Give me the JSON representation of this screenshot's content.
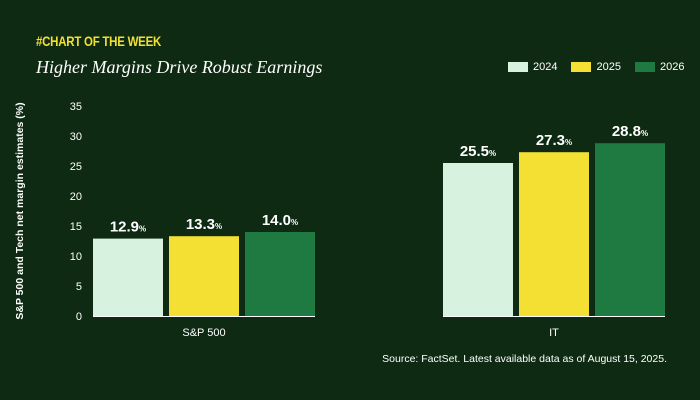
{
  "header": {
    "tag": "#CHART OF THE WEEK",
    "title": "Higher Margins Drive Robust Earnings"
  },
  "footer": {
    "source": "Source: FactSet. Latest available data as of August 15, 2025."
  },
  "colors": {
    "background": "#0f2a12",
    "accent": "#f3e033",
    "s2024": "#d8f2e0",
    "s2025": "#f3e033",
    "s2026": "#1e7a40"
  },
  "chart_data": {
    "type": "bar",
    "categories": [
      "S&P 500",
      "IT"
    ],
    "series": [
      {
        "name": "2024",
        "values": [
          12.9,
          25.5
        ],
        "labels": [
          "12.9",
          "25.5"
        ],
        "color": "#d8f2e0"
      },
      {
        "name": "2025",
        "values": [
          13.3,
          27.3
        ],
        "labels": [
          "13.3",
          "27.3"
        ],
        "color": "#f3e033"
      },
      {
        "name": "2026",
        "values": [
          14.0,
          28.8
        ],
        "labels": [
          "14.0",
          "28.8"
        ],
        "color": "#1e7a40"
      }
    ],
    "label_unit": "%",
    "ylabel": "S&P 500 and Tech net margin estimates (%)",
    "xlabel": "",
    "ylim": [
      0,
      35
    ],
    "yticks": [
      0,
      5,
      10,
      15,
      20,
      25,
      30,
      35
    ],
    "grid": false,
    "legend_position": "top-right"
  }
}
